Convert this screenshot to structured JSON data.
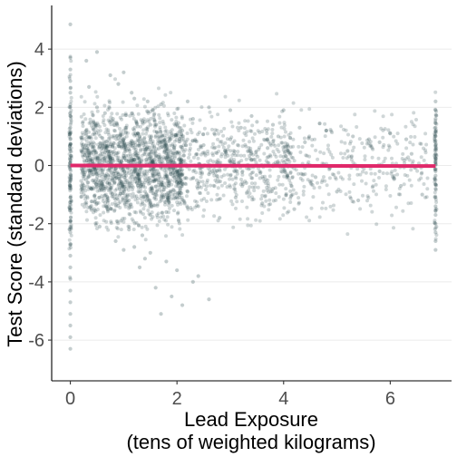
{
  "chart_data": {
    "type": "scatter",
    "title": "",
    "xlabel_line1": "Lead Exposure",
    "xlabel_line2": "(tens of weighted kilograms)",
    "ylabel": "Test Score (standard deviations)",
    "xlim": [
      -0.35,
      7.15
    ],
    "ylim": [
      -7.4,
      5.5
    ],
    "x_ticks": [
      0,
      2,
      4,
      6
    ],
    "x_tick_labels": [
      "0",
      "2",
      "4",
      "6"
    ],
    "y_ticks": [
      4,
      2,
      0,
      -2,
      -4,
      -6
    ],
    "y_tick_labels": [
      "4",
      "2",
      "0",
      "-2",
      "-4",
      "-6"
    ],
    "grid": "horizontal major lines",
    "point_color": "#2b4a4f",
    "point_opacity": 0.28,
    "trend_line": {
      "color": "#e0286a",
      "x": [
        0,
        6.85
      ],
      "y": [
        0.0,
        -0.02
      ]
    },
    "series": [
      {
        "x": [
          0.0,
          0.0,
          0.0,
          0.0,
          0.0,
          0.0,
          0.0,
          0.0,
          0.0,
          0.0,
          0.0,
          0.0,
          0.0,
          0.0,
          0.0,
          0.0,
          0.0,
          0.0,
          0.0,
          0.0,
          0.0,
          0.0,
          0.0,
          0.0,
          0.0,
          0.0,
          0.0,
          0.0,
          0.0,
          0.0,
          0.3,
          0.4,
          0.5,
          0.6,
          0.7,
          0.8,
          0.9,
          1.0,
          1.1,
          1.2,
          1.3,
          1.4,
          1.5,
          1.6,
          1.7,
          1.8,
          1.9,
          2.0,
          0.35,
          0.55,
          0.75,
          0.95,
          1.15,
          1.35,
          1.55,
          1.75,
          1.95,
          0.45,
          0.65,
          0.85,
          1.05,
          1.25,
          1.45,
          1.65,
          1.85,
          0.5,
          0.7,
          0.9,
          1.1,
          1.3,
          1.5,
          1.7,
          0.6,
          0.8,
          1.0,
          1.2,
          1.4,
          1.6,
          1.8,
          2.1,
          2.2,
          2.3,
          2.4,
          2.5,
          2.6,
          2.7,
          2.8,
          2.9,
          3.0,
          3.1,
          3.2,
          3.3,
          3.4,
          3.5,
          3.6,
          3.7,
          3.8,
          3.9,
          4.0,
          4.2,
          4.4,
          4.6,
          4.8,
          5.0,
          5.2,
          5.4,
          5.6,
          5.8,
          6.0,
          6.2,
          6.4,
          6.6,
          2.2,
          2.6,
          3.0,
          3.4,
          3.8,
          4.3,
          4.8,
          5.3,
          5.8,
          6.3,
          1.2,
          1.5,
          1.8,
          2.0,
          2.3,
          1.6,
          1.9,
          2.1,
          1.4,
          1.7,
          2.4,
          1.0,
          1.3,
          2.6,
          0.3,
          4.0,
          0.5,
          6.85,
          6.85,
          6.85,
          6.85,
          6.85,
          6.85,
          6.85,
          6.85,
          6.85,
          6.85,
          6.85,
          6.85,
          6.85,
          6.85,
          6.85,
          6.85,
          6.85,
          6.85,
          6.85,
          6.85,
          6.85,
          6.85,
          6.85,
          6.85,
          6.85
        ],
        "y": [
          3.7,
          3.3,
          2.9,
          2.5,
          2.1,
          1.7,
          1.3,
          0.9,
          0.5,
          0.1,
          -0.3,
          -0.7,
          -1.1,
          -1.5,
          -1.9,
          -2.3,
          -2.7,
          -3.1,
          -3.5,
          -3.9,
          -4.3,
          -4.7,
          -5.1,
          -5.5,
          -5.9,
          -6.3,
          0.2,
          -0.5,
          1.1,
          4.85,
          1.2,
          -0.8,
          2.0,
          0.4,
          -1.5,
          1.6,
          -0.3,
          0.9,
          -1.2,
          2.3,
          0.1,
          -0.9,
          1.4,
          -0.5,
          0.8,
          -1.6,
          1.1,
          -0.2,
          2.7,
          -2.1,
          3.1,
          -1.9,
          2.5,
          -2.4,
          1.9,
          -1.1,
          0.6,
          0.5,
          1.8,
          -2.6,
          1.3,
          -0.6,
          2.2,
          0.3,
          -0.7,
          -1.3,
          0.7,
          2.8,
          -2.2,
          1.0,
          -1.7,
          2.1,
          0.0,
          -0.4,
          3.2,
          0.2,
          1.5,
          -1.0,
          0.4,
          1.2,
          -0.9,
          1.6,
          -1.4,
          0.7,
          -0.3,
          1.1,
          -1.8,
          0.5,
          0.9,
          -1.1,
          1.3,
          -0.6,
          0.2,
          1.5,
          -1.3,
          0.6,
          -0.8,
          1.0,
          0.3,
          -1.5,
          0.8,
          -0.4,
          1.2,
          -0.9,
          0.5,
          -1.2,
          0.9,
          -0.2,
          1.1,
          -0.7,
          0.4,
          -1.0,
          2.2,
          2.0,
          1.9,
          1.7,
          1.4,
          1.3,
          1.2,
          1.0,
          0.8,
          0.9,
          -2.8,
          -3.0,
          -3.3,
          -3.6,
          -4.0,
          -4.2,
          -4.5,
          -4.8,
          -3.2,
          -5.1,
          -3.8,
          -2.9,
          -3.5,
          -4.6,
          3.6,
          1.9,
          3.9,
          2.2,
          1.9,
          1.6,
          1.3,
          1.0,
          0.7,
          0.4,
          0.1,
          -0.2,
          -0.5,
          -0.8,
          -1.1,
          -1.4,
          -1.7,
          -2.0,
          -2.3,
          -2.6,
          -2.9,
          0.25,
          -0.35,
          0.55,
          -0.65,
          1.45,
          -1.55,
          0.85
        ]
      }
    ]
  }
}
